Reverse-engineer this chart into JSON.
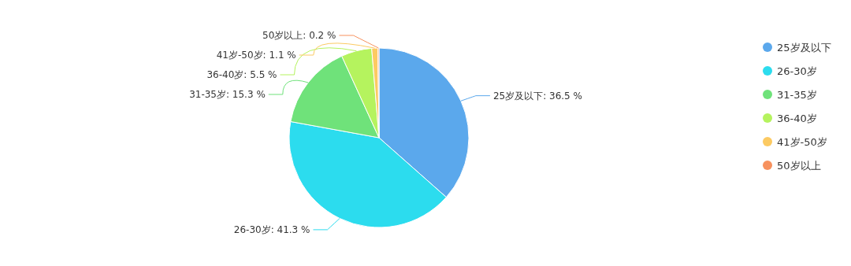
{
  "chart_data": {
    "type": "pie",
    "categories": [
      "25岁及以下",
      "26-30岁",
      "31-35岁",
      "36-40岁",
      "41岁-50岁",
      "50岁以上"
    ],
    "values": [
      36.5,
      41.3,
      15.3,
      5.5,
      1.1,
      0.2
    ],
    "colors": [
      "#5ba8ec",
      "#2cdcee",
      "#6fe27a",
      "#b5f35e",
      "#fcca62",
      "#f7915e"
    ],
    "value_labels": [
      "25岁及以下: 36.5 %",
      "26-30岁: 41.3 %",
      "31-35岁: 15.3 %",
      "36-40岁: 5.5 %",
      "41岁-50岁: 1.1 %",
      "50岁以上: 0.2 %"
    ],
    "legend": "right"
  }
}
